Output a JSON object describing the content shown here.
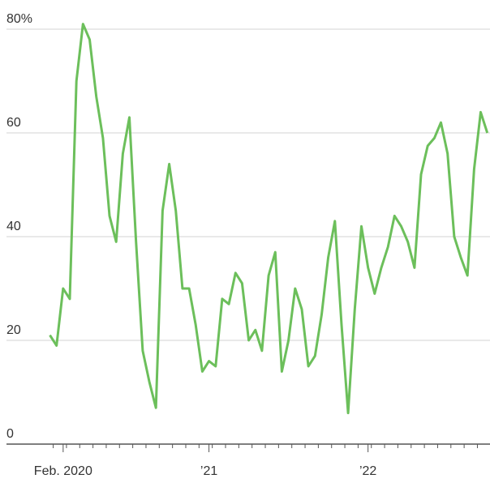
{
  "chart_data": {
    "type": "line",
    "categories": [
      null,
      null,
      "Feb. 2020",
      null,
      null,
      null,
      null,
      null,
      null,
      null,
      null,
      null,
      null,
      null,
      null,
      null,
      null,
      null,
      null,
      null,
      null,
      null,
      null,
      null,
      "’21",
      null,
      null,
      null,
      null,
      null,
      null,
      null,
      null,
      null,
      null,
      null,
      null,
      null,
      null,
      null,
      null,
      null,
      null,
      null,
      null,
      null,
      null,
      null,
      "’22",
      null,
      null,
      null,
      null,
      null,
      null,
      null,
      null,
      null,
      null,
      null,
      null,
      null,
      null,
      null,
      null,
      null,
      null
    ],
    "series": [
      {
        "color": "#6cbf5b",
        "values": [
          21,
          19,
          30,
          28,
          70,
          81,
          78,
          67,
          59,
          44,
          39,
          56,
          63,
          39,
          18,
          12,
          7,
          45,
          54,
          45,
          30,
          30,
          23,
          14,
          16,
          15,
          28,
          27,
          33,
          31,
          20,
          22,
          18,
          32.5,
          37,
          14,
          20,
          30,
          26,
          15,
          17,
          25,
          36,
          43,
          23,
          6,
          26,
          42,
          34,
          29,
          34,
          38,
          44,
          42,
          39,
          34,
          52,
          57.5,
          59,
          62,
          56,
          40,
          36,
          32.5,
          53,
          64,
          60
        ]
      }
    ],
    "ylim": [
      0,
      80
    ],
    "yticks": [
      0,
      20,
      40,
      60,
      {
        "value": 80,
        "label": "80%"
      }
    ],
    "grid": true
  }
}
